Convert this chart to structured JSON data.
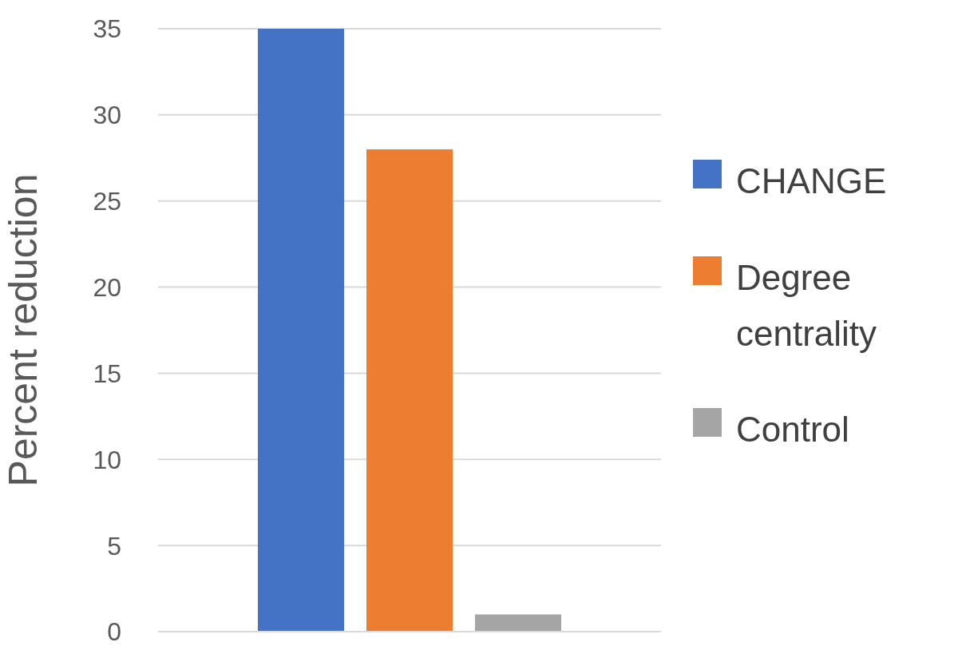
{
  "chart_data": {
    "type": "bar",
    "ylabel": "Percent reduction",
    "categories": [
      null
    ],
    "series": [
      {
        "name": "CHANGE",
        "color": "#4472c4",
        "values": [
          35
        ]
      },
      {
        "name": "Degree centrality",
        "color": "#ed7d31",
        "values": [
          28
        ]
      },
      {
        "name": "Control",
        "color": "#a5a5a5",
        "values": [
          1
        ]
      }
    ],
    "ylim": [
      0,
      35
    ],
    "yticks": [
      0,
      5,
      10,
      15,
      20,
      25,
      30,
      35
    ],
    "grid": "y",
    "legend": "right"
  }
}
